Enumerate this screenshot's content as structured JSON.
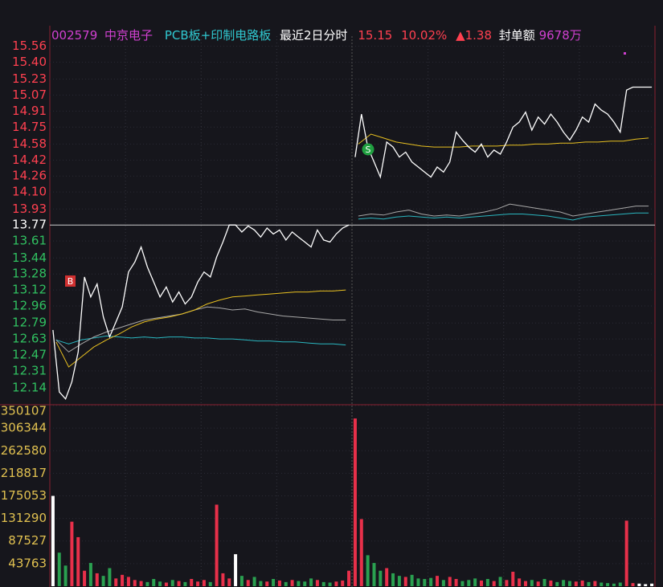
{
  "chart_data": {
    "type": "line",
    "header": {
      "code": "002579",
      "name": "中京电子",
      "sector": "PCB板+印制电路板",
      "period": "最近2日分时",
      "price": "15.15",
      "change_pct": "10.02%",
      "change": "▲1.38",
      "seal_label": "封单额",
      "seal_amount": "9678万"
    },
    "ylim": [
      11.98,
      15.66
    ],
    "reference": 13.77,
    "yticks": [
      15.56,
      {
        "value": 15.4,
        "label": "15.40"
      },
      15.23,
      15.07,
      14.91,
      14.75,
      14.58,
      14.42,
      14.26,
      {
        "value": 14.1,
        "label": "14.10"
      },
      13.93,
      13.77,
      13.61,
      13.44,
      13.28,
      13.12,
      12.96,
      12.79,
      12.63,
      12.47,
      12.31,
      12.14
    ],
    "colors": {
      "price": "#ffffff",
      "avg": "#e8c020",
      "index_a": "#a8a8a8",
      "index_b": "#2ab7c0",
      "up": "#e8304a",
      "down": "#2aa050",
      "flat": "#ffffff"
    },
    "markers": [
      "B",
      "S"
    ],
    "days": [
      {
        "price": [
          12.72,
          12.1,
          12.03,
          12.2,
          12.5,
          13.25,
          13.05,
          13.18,
          12.85,
          12.65,
          12.8,
          12.95,
          13.3,
          13.4,
          13.55,
          13.35,
          13.2,
          13.05,
          13.15,
          13.0,
          13.1,
          12.98,
          13.05,
          13.2,
          13.3,
          13.25,
          13.45,
          13.6,
          13.77,
          13.77,
          13.7,
          13.76,
          13.72,
          13.65,
          13.74,
          13.68,
          13.72,
          13.62,
          13.7,
          13.65,
          13.6,
          13.55,
          13.72,
          13.62,
          13.6,
          13.68,
          13.74,
          13.77
        ],
        "avg": [
          12.6,
          12.35,
          12.45,
          12.55,
          12.62,
          12.68,
          12.75,
          12.8,
          12.83,
          12.85,
          12.88,
          12.92,
          12.98,
          13.02,
          13.05,
          13.06,
          13.07,
          13.08,
          13.09,
          13.1,
          13.1,
          13.11,
          13.11,
          13.12
        ],
        "index_a": [
          12.62,
          12.5,
          12.58,
          12.65,
          12.7,
          12.74,
          12.78,
          12.82,
          12.84,
          12.86,
          12.88,
          12.92,
          12.95,
          12.94,
          12.92,
          12.93,
          12.9,
          12.88,
          12.86,
          12.85,
          12.84,
          12.83,
          12.82,
          12.82
        ],
        "index_b": [
          12.62,
          12.58,
          12.62,
          12.64,
          12.66,
          12.65,
          12.64,
          12.65,
          12.64,
          12.65,
          12.65,
          12.64,
          12.64,
          12.63,
          12.63,
          12.62,
          12.61,
          12.61,
          12.6,
          12.6,
          12.59,
          12.58,
          12.58,
          12.57
        ]
      },
      {
        "price": [
          14.45,
          14.88,
          14.55,
          14.4,
          14.25,
          14.6,
          14.55,
          14.45,
          14.5,
          14.4,
          14.35,
          14.3,
          14.25,
          14.35,
          14.3,
          14.4,
          14.7,
          14.62,
          14.55,
          14.5,
          14.58,
          14.45,
          14.52,
          14.48,
          14.6,
          14.75,
          14.8,
          14.9,
          14.72,
          14.85,
          14.78,
          14.88,
          14.8,
          14.7,
          14.62,
          14.72,
          14.85,
          14.8,
          14.98,
          14.92,
          14.88,
          14.8,
          14.7,
          15.12,
          15.15,
          15.15,
          15.15,
          15.15
        ],
        "avg": [
          14.58,
          14.68,
          14.64,
          14.6,
          14.58,
          14.56,
          14.55,
          14.55,
          14.55,
          14.56,
          14.56,
          14.56,
          14.57,
          14.57,
          14.58,
          14.58,
          14.59,
          14.59,
          14.6,
          14.6,
          14.61,
          14.61,
          14.63,
          14.64
        ],
        "index_a": [
          13.86,
          13.88,
          13.87,
          13.9,
          13.92,
          13.88,
          13.86,
          13.87,
          13.86,
          13.88,
          13.9,
          13.93,
          13.98,
          13.96,
          13.94,
          13.92,
          13.9,
          13.86,
          13.88,
          13.9,
          13.92,
          13.94,
          13.96,
          13.96
        ],
        "index_b": [
          13.83,
          13.84,
          13.83,
          13.85,
          13.86,
          13.85,
          13.84,
          13.85,
          13.84,
          13.85,
          13.86,
          13.87,
          13.88,
          13.88,
          13.87,
          13.86,
          13.84,
          13.82,
          13.85,
          13.86,
          13.87,
          13.88,
          13.89,
          13.89
        ]
      }
    ],
    "volume": {
      "ylim": [
        0,
        350107
      ],
      "yticks": [
        350107,
        306344,
        262580,
        218817,
        175053,
        131290,
        87527,
        43763
      ],
      "tick_color": "#e0c050",
      "days": [
        [
          175000,
          65000,
          40000,
          125000,
          95000,
          30000,
          45000,
          25000,
          20000,
          35000,
          15000,
          22000,
          18000,
          12000,
          10000,
          8000,
          14000,
          9000,
          7000,
          12000,
          10000,
          8000,
          14000,
          9000,
          12000,
          8000,
          158000,
          25000,
          15000,
          62000,
          20000,
          12000,
          18000,
          10000,
          9000,
          14000,
          11000,
          8000,
          12000,
          10000,
          9000,
          15000,
          12000,
          8000,
          7000,
          9000,
          11000,
          30000
        ],
        [
          325000,
          130000,
          60000,
          45000,
          30000,
          35000,
          25000,
          20000,
          18000,
          22000,
          15000,
          14000,
          16000,
          20000,
          12000,
          18000,
          14000,
          10000,
          12000,
          15000,
          11000,
          14000,
          10000,
          18000,
          12000,
          28000,
          15000,
          10000,
          12000,
          9000,
          14000,
          11000,
          8000,
          12000,
          10000,
          9000,
          11000,
          8000,
          10000,
          7000,
          6000,
          5000,
          7000,
          127000,
          6000,
          5000,
          4000,
          5000
        ]
      ]
    }
  }
}
